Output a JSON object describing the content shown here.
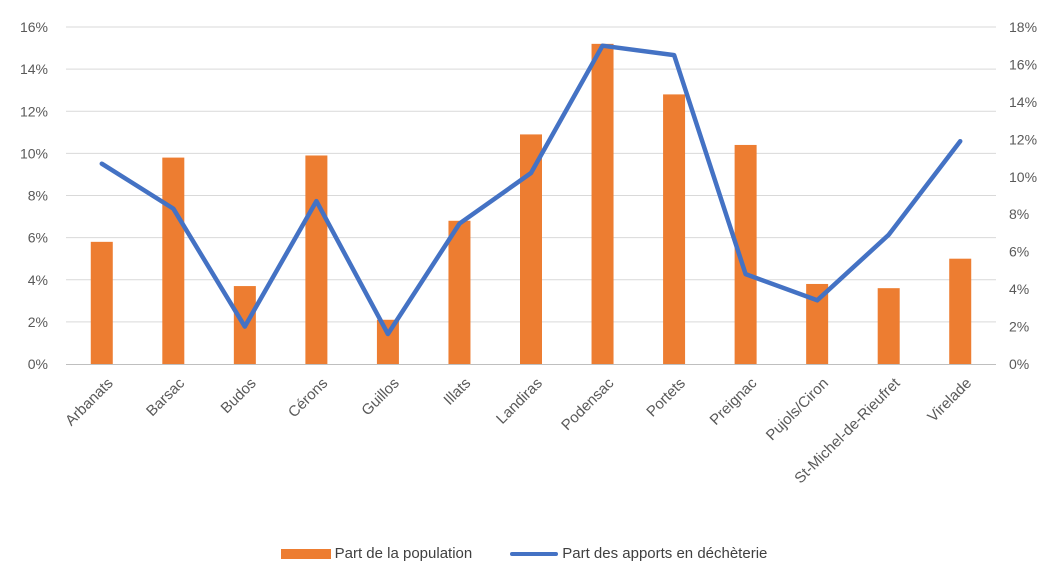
{
  "chart_data": {
    "type": "bar",
    "categories": [
      "Arbanats",
      "Barsac",
      "Budos",
      "Cérons",
      "Guillos",
      "Illats",
      "Landiras",
      "Podensac",
      "Portets",
      "Preignac",
      "Pujols/Ciron",
      "St-Michel-de-Rieufret",
      "Virelade"
    ],
    "series": [
      {
        "name": "Part de la population",
        "type": "bar",
        "axis": "left",
        "color": "#ED7D31",
        "values": [
          5.8,
          9.8,
          3.7,
          9.9,
          2.1,
          6.8,
          10.9,
          15.2,
          12.8,
          10.4,
          3.8,
          3.6,
          5.0
        ]
      },
      {
        "name": "Part des apports en déchèterie",
        "type": "line",
        "axis": "right",
        "color": "#4472C4",
        "values": [
          10.7,
          8.3,
          2.0,
          8.7,
          1.6,
          7.5,
          10.2,
          17.0,
          16.5,
          4.8,
          3.4,
          6.9,
          11.9
        ]
      }
    ],
    "y_left": {
      "ylim": [
        0,
        16
      ],
      "ticks": [
        "0%",
        "2%",
        "4%",
        "6%",
        "8%",
        "10%",
        "12%",
        "14%",
        "16%"
      ]
    },
    "y_right": {
      "ylim": [
        0,
        18
      ],
      "ticks": [
        "0%",
        "2%",
        "4%",
        "6%",
        "8%",
        "10%",
        "12%",
        "14%",
        "16%",
        "18%"
      ]
    },
    "grid": true,
    "legend_position": "bottom"
  },
  "legend": {
    "bar_label": "Part de la population",
    "line_label": "Part des apports en déchèterie"
  }
}
